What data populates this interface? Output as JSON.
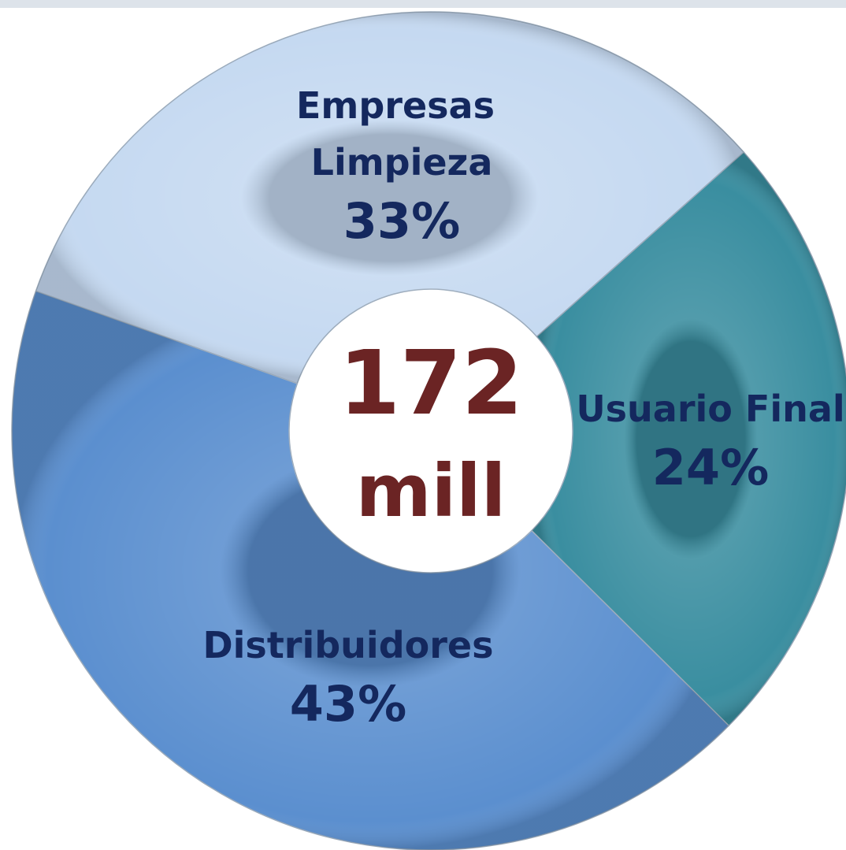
{
  "chart_data": {
    "type": "donut",
    "categories": [
      "Empresas Limpieza",
      "Usuario Final",
      "Distribuidores"
    ],
    "values": [
      33,
      24,
      43
    ],
    "value_labels": [
      "33%",
      "24%",
      "43%"
    ],
    "colors": [
      "#c5d9f1",
      "#3a8ea0",
      "#5b8fcf"
    ],
    "center_label": [
      "172",
      "mill"
    ]
  }
}
